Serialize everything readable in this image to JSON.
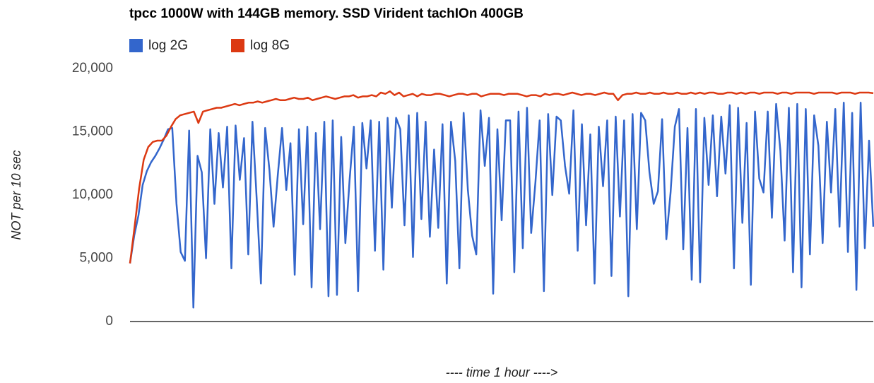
{
  "chart_data": {
    "type": "line",
    "title": "tpcc 1000W with 144GB memory. SSD Virident tachIOn 400GB",
    "xlabel": "---- time 1 hour ---->",
    "ylabel": "NOT per 10 sec",
    "ylim": [
      0,
      20000
    ],
    "yticks": [
      0,
      {
        "value": 5000,
        "label": "5,000"
      },
      {
        "value": 10000,
        "label": "10,000"
      },
      {
        "value": 15000,
        "label": "15,000"
      },
      {
        "value": 20000,
        "label": "20,000"
      }
    ],
    "legend": "top",
    "series": [
      {
        "name": "log 2G",
        "color": "#3366cc",
        "values": [
          4600,
          6800,
          8400,
          10800,
          11900,
          12600,
          13100,
          13700,
          14400,
          15200,
          15300,
          9300,
          5500,
          4800,
          15100,
          1100,
          13100,
          11800,
          5000,
          15200,
          9300,
          14900,
          10600,
          15400,
          4200,
          15500,
          11200,
          14500,
          5300,
          15800,
          9700,
          3000,
          15300,
          12000,
          7500,
          11600,
          15300,
          10400,
          14100,
          3700,
          15200,
          7700,
          15400,
          2700,
          14900,
          7300,
          15800,
          2000,
          15900,
          2100,
          14600,
          6200,
          11200,
          15400,
          2400,
          15700,
          12100,
          15900,
          5600,
          15800,
          4100,
          16100,
          9000,
          16100,
          15200,
          7600,
          16300,
          5100,
          16500,
          8100,
          15800,
          6700,
          13600,
          7400,
          15600,
          3000,
          15800,
          12700,
          4200,
          16500,
          10400,
          6800,
          5300,
          16700,
          12300,
          16100,
          2200,
          15200,
          8000,
          15900,
          15900,
          3900,
          16600,
          5800,
          16900,
          7000,
          11000,
          15900,
          2400,
          16400,
          10000,
          16200,
          15900,
          12300,
          10100,
          16700,
          5600,
          15600,
          7600,
          14800,
          3000,
          15400,
          10700,
          15900,
          3600,
          16200,
          8300,
          15900,
          2000,
          16400,
          7300,
          16500,
          15900,
          11800,
          9300,
          10300,
          16000,
          6500,
          10200,
          15400,
          16800,
          5700,
          15300,
          3300,
          16800,
          3100,
          16100,
          10800,
          16300,
          9900,
          16200,
          11700,
          17100,
          4200,
          16900,
          7800,
          15700,
          2900,
          16600,
          11300,
          10200,
          16600,
          8200,
          17200,
          13500,
          6400,
          16900,
          3900,
          17200,
          2700,
          16800,
          5300,
          16300,
          13900,
          6200,
          15800,
          10200,
          16800,
          7500,
          17300,
          5500,
          16500,
          2500,
          17300,
          5800,
          14300,
          7500
        ]
      },
      {
        "name": "log 8G",
        "color": "#dc3912",
        "values": [
          4600,
          7500,
          10500,
          12800,
          13800,
          14200,
          14300,
          14300,
          14700,
          15400,
          16000,
          16300,
          16400,
          16500,
          16600,
          15700,
          16600,
          16700,
          16800,
          16900,
          16900,
          17000,
          17100,
          17200,
          17100,
          17200,
          17300,
          17300,
          17400,
          17300,
          17400,
          17500,
          17600,
          17500,
          17500,
          17600,
          17700,
          17600,
          17600,
          17700,
          17500,
          17600,
          17700,
          17800,
          17700,
          17600,
          17700,
          17800,
          17800,
          17900,
          17700,
          17800,
          17800,
          17900,
          17800,
          18100,
          18000,
          18200,
          17900,
          18100,
          17800,
          17900,
          18000,
          17800,
          18000,
          17900,
          17900,
          18000,
          18000,
          17900,
          17800,
          17900,
          18000,
          18000,
          17900,
          18000,
          18000,
          17800,
          17900,
          18000,
          18000,
          18000,
          17900,
          18000,
          18000,
          18000,
          17900,
          17800,
          17900,
          17900,
          17800,
          18000,
          17900,
          18000,
          18000,
          17900,
          18000,
          18100,
          18000,
          17900,
          18000,
          18000,
          17900,
          18000,
          18100,
          18000,
          18000,
          17500,
          17900,
          18000,
          18000,
          18100,
          18000,
          18000,
          18100,
          18000,
          18000,
          18100,
          18000,
          18000,
          18100,
          18000,
          18000,
          18100,
          18000,
          18100,
          18000,
          18100,
          18100,
          18000,
          18000,
          18100,
          18100,
          18000,
          18100,
          18000,
          18100,
          18100,
          18000,
          18100,
          18100,
          18100,
          18000,
          18100,
          18100,
          18000,
          18100,
          18100,
          18100,
          18100,
          18000,
          18100,
          18100,
          18100,
          18100,
          18000,
          18100,
          18100,
          18100,
          18000,
          18100,
          18100,
          18100,
          18050
        ]
      }
    ]
  }
}
